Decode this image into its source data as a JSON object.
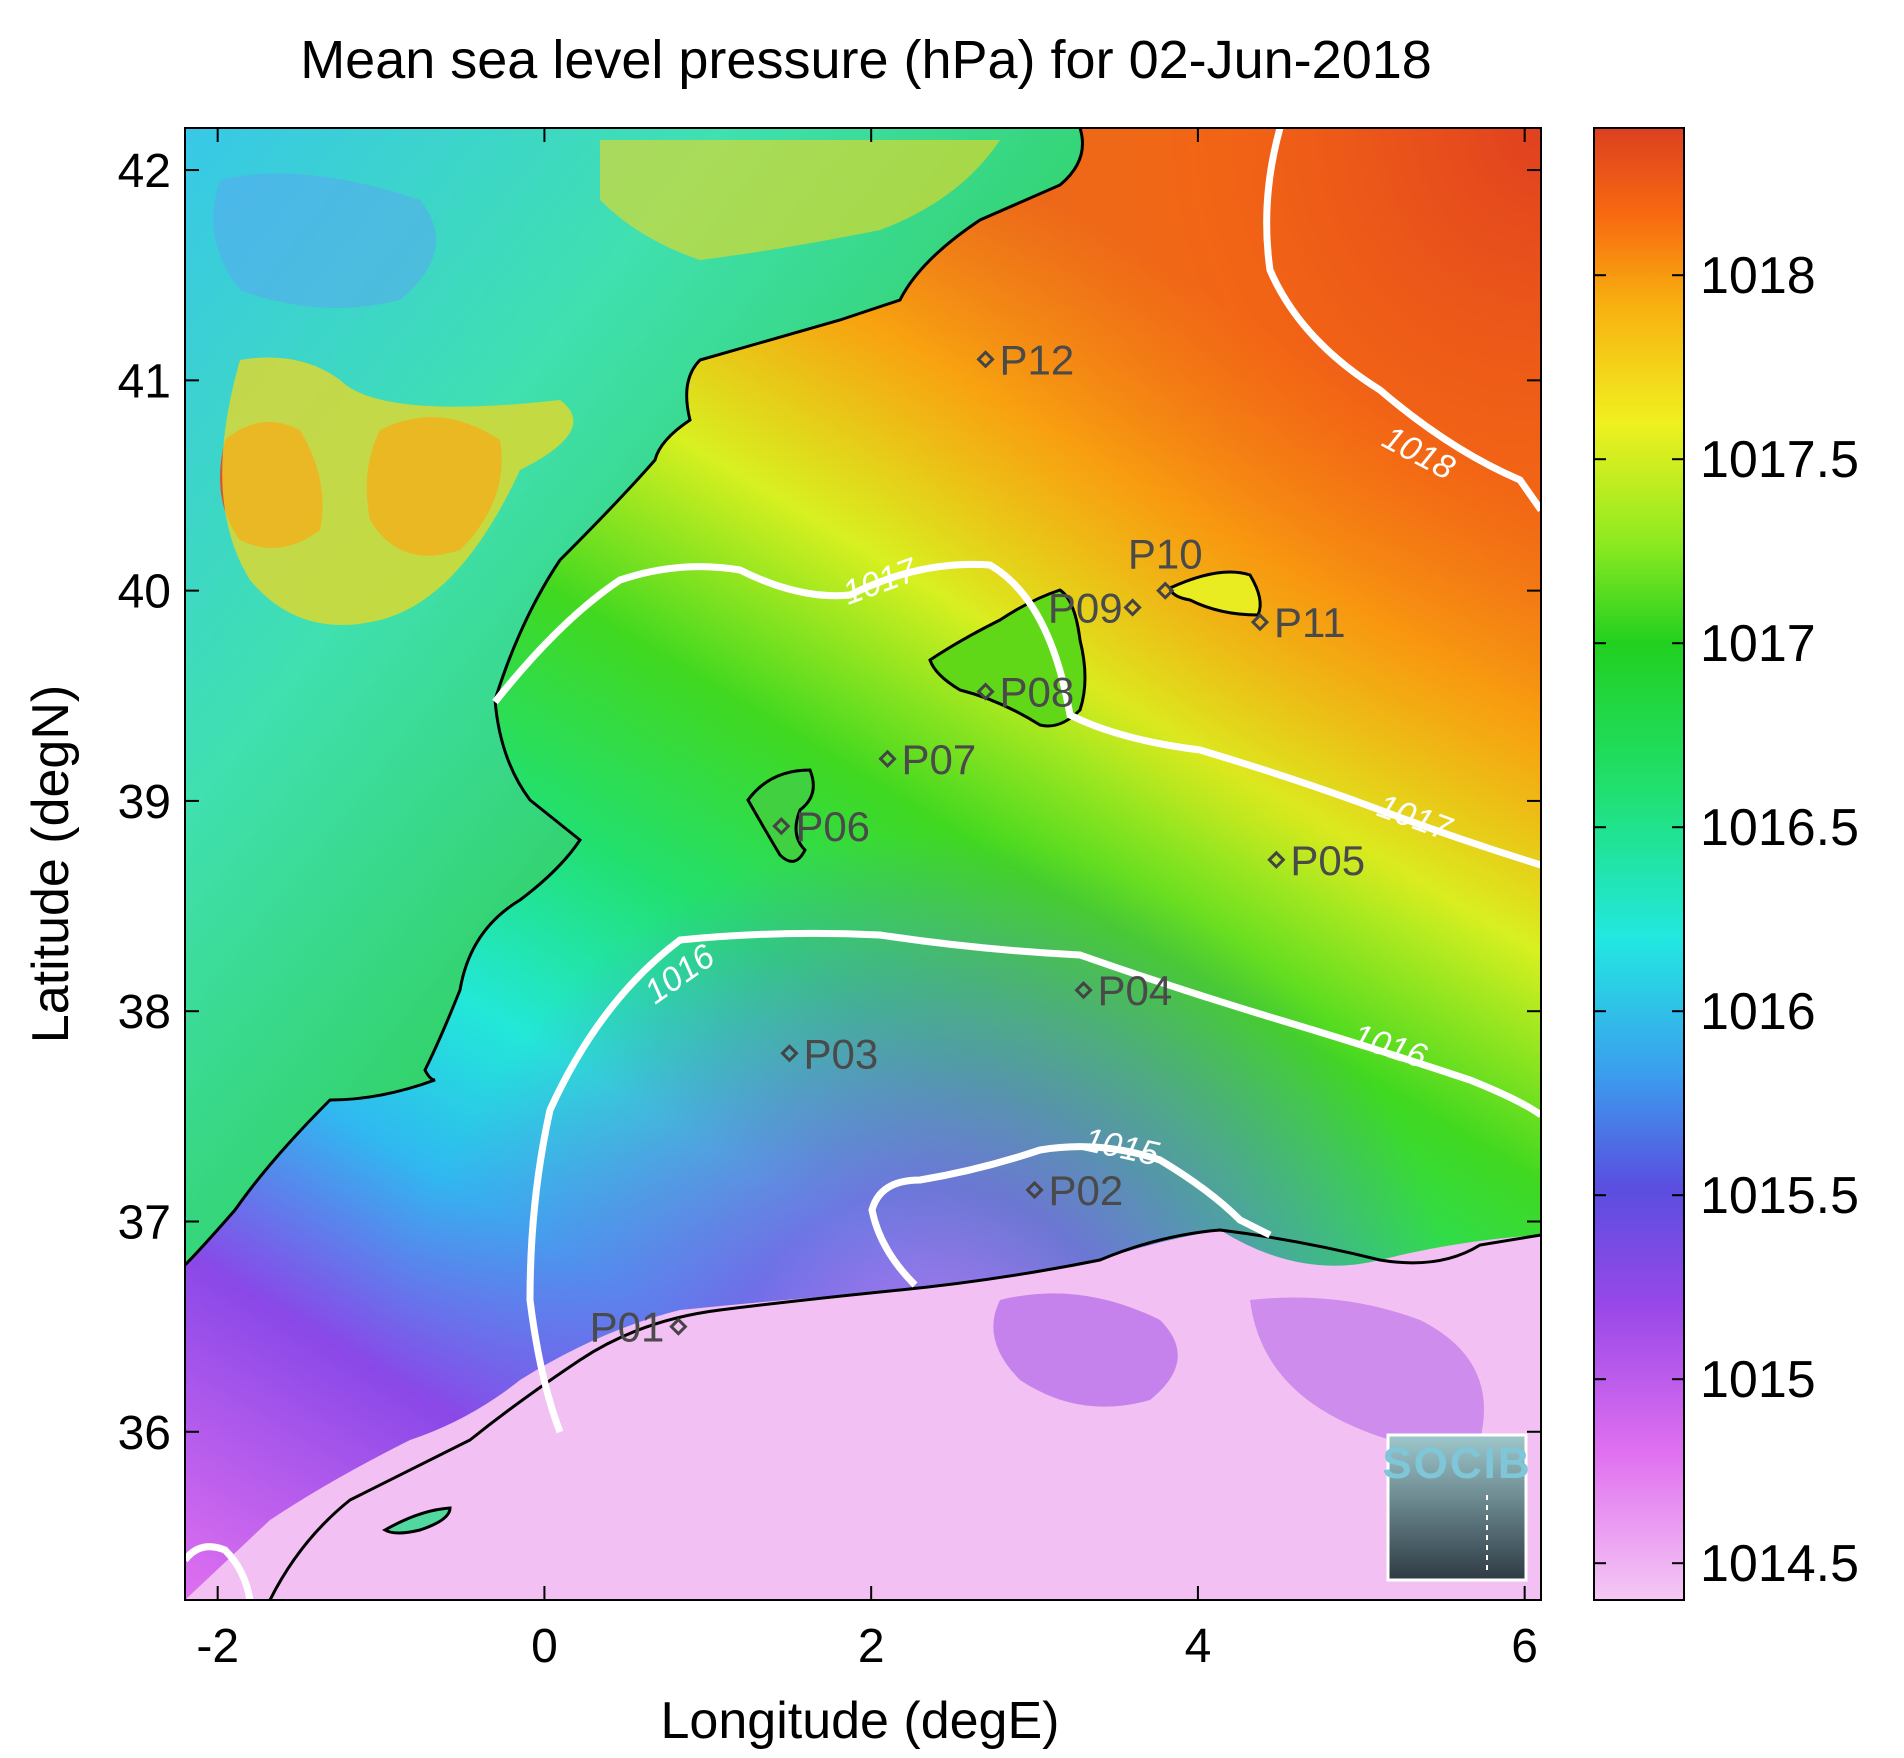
{
  "title": "Mean sea level pressure (hPa) for 02-Jun-2018",
  "x_axis": {
    "label": "Longitude (degE)",
    "range": [
      -2.2,
      6.1
    ],
    "ticks": [
      -2,
      0,
      2,
      4,
      6
    ],
    "tick_labels": [
      "-2",
      "0",
      "2",
      "4",
      "6"
    ]
  },
  "y_axis": {
    "label": "Latitude (degN)",
    "range": [
      35.2,
      42.2
    ],
    "ticks": [
      36,
      37,
      38,
      39,
      40,
      41,
      42
    ],
    "tick_labels": [
      "36",
      "37",
      "38",
      "39",
      "40",
      "41",
      "42"
    ]
  },
  "colorbar": {
    "range": [
      1014.4,
      1018.4
    ],
    "ticks": [
      1014.5,
      1015,
      1015.5,
      1016,
      1016.5,
      1017,
      1017.5,
      1018
    ],
    "tick_labels": [
      "1014.5",
      "1015",
      "1015.5",
      "1016",
      "1016.5",
      "1017",
      "1017.5",
      "1018"
    ],
    "colors": [
      "#f2c2f2",
      "#e070f0",
      "#9040e8",
      "#5050e8",
      "#30a0f0",
      "#20e8e0",
      "#20e070",
      "#20d020",
      "#80e820",
      "#f0f020",
      "#f8c010",
      "#f87010",
      "#e04020"
    ]
  },
  "stations": [
    {
      "id": "P01",
      "lon": 0.82,
      "lat": 36.5
    },
    {
      "id": "P02",
      "lon": 3.0,
      "lat": 37.15
    },
    {
      "id": "P03",
      "lon": 1.5,
      "lat": 37.8
    },
    {
      "id": "P04",
      "lon": 3.3,
      "lat": 38.1
    },
    {
      "id": "P05",
      "lon": 4.48,
      "lat": 38.72
    },
    {
      "id": "P06",
      "lon": 1.45,
      "lat": 38.88
    },
    {
      "id": "P07",
      "lon": 2.1,
      "lat": 39.2
    },
    {
      "id": "P08",
      "lon": 2.7,
      "lat": 39.52
    },
    {
      "id": "P09",
      "lon": 3.6,
      "lat": 39.92
    },
    {
      "id": "P10",
      "lon": 3.8,
      "lat": 40.0
    },
    {
      "id": "P11",
      "lon": 4.38,
      "lat": 39.85
    },
    {
      "id": "P12",
      "lon": 2.7,
      "lat": 41.1
    }
  ],
  "contour_labels": [
    "1018",
    "1017",
    "1017",
    "1016",
    "1016",
    "1015"
  ],
  "logo": {
    "text": "SOCIB"
  },
  "chart_data": {
    "type": "heatmap",
    "title": "Mean sea level pressure (hPa) for 02-Jun-2018",
    "xlabel": "Longitude (degE)",
    "ylabel": "Latitude (degN)",
    "xlim": [
      -2.2,
      6.1
    ],
    "ylim": [
      35.2,
      42.2
    ],
    "zlim": [
      1014.4,
      1018.4
    ],
    "contour_levels": [
      1015,
      1016,
      1017,
      1018
    ],
    "colorbar_ticks": [
      1014.5,
      1015,
      1015.5,
      1016,
      1016.5,
      1017,
      1017.5,
      1018
    ],
    "grid": false,
    "legend": "colorbar-right"
  }
}
